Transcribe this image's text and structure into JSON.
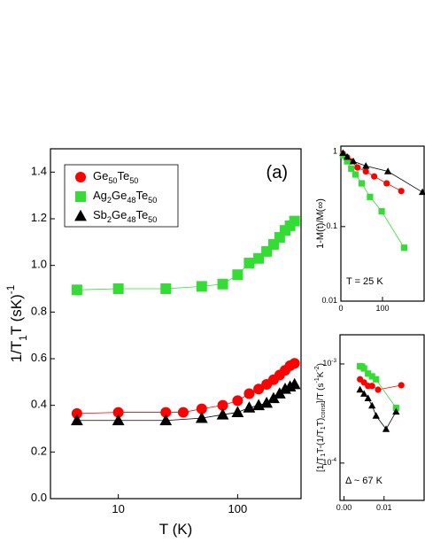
{
  "chart_data": [
    {
      "type": "scatter",
      "panel_label": "(a)",
      "x_label": "T (K)",
      "y_label": "1/T1T (sK)-1",
      "xscale": "log",
      "xlim": [
        2.7,
        340
      ],
      "xticks": [
        10,
        100
      ],
      "ylim": [
        0,
        1.5
      ],
      "yticks": [
        {
          "value": 0,
          "label": "0.0"
        },
        0.2,
        0.4,
        0.6,
        0.8,
        {
          "value": 1,
          "label": "1.0"
        },
        1.2,
        1.4
      ],
      "legend": "upper-left",
      "series": [
        {
          "name": "Ge50Te50",
          "color": "#ff0000",
          "marker": "circle",
          "x": [
            4.5,
            10,
            25,
            35,
            50,
            75,
            100,
            125,
            150,
            175,
            200,
            225,
            250,
            275,
            300
          ],
          "values": [
            0.365,
            0.37,
            0.37,
            0.37,
            0.385,
            0.4,
            0.42,
            0.45,
            0.47,
            0.49,
            0.51,
            0.53,
            0.55,
            0.57,
            0.58
          ]
        },
        {
          "name": "Ag2Ge48Te50",
          "color": "#33dd33",
          "marker": "square",
          "x": [
            4.5,
            10,
            25,
            50,
            75,
            100,
            125,
            150,
            175,
            200,
            225,
            250,
            275,
            300
          ],
          "values": [
            0.895,
            0.9,
            0.9,
            0.91,
            0.92,
            0.96,
            1.01,
            1.03,
            1.06,
            1.09,
            1.12,
            1.15,
            1.17,
            1.19
          ]
        },
        {
          "name": "Sb2Ge48Te50",
          "color": "#000000",
          "marker": "triangle",
          "x": [
            4.5,
            10,
            25,
            50,
            75,
            100,
            125,
            150,
            175,
            200,
            225,
            250,
            275,
            300
          ],
          "values": [
            0.335,
            0.335,
            0.335,
            0.345,
            0.36,
            0.37,
            0.39,
            0.4,
            0.41,
            0.43,
            0.45,
            0.47,
            0.48,
            0.49
          ]
        }
      ]
    },
    {
      "type": "scatter",
      "y_label": "1-M(t)/M(∞)",
      "annotation": "T = 25 K",
      "xlim": [
        0,
        200
      ],
      "xticks": [
        0,
        100
      ],
      "yscale": "log",
      "ylim": [
        0.01,
        1.2
      ],
      "yticks": [
        0.01,
        0.1,
        1
      ],
      "series": [
        {
          "color": "#ff0000",
          "marker": "circle",
          "x": [
            5,
            15,
            25,
            40,
            60,
            80,
            110,
            145
          ],
          "values": [
            0.95,
            0.85,
            0.75,
            0.62,
            0.55,
            0.47,
            0.38,
            0.3
          ]
        },
        {
          "color": "#33dd33",
          "marker": "square",
          "x": [
            5,
            15,
            25,
            35,
            50,
            70,
            98,
            152
          ],
          "values": [
            0.9,
            0.75,
            0.6,
            0.5,
            0.38,
            0.25,
            0.16,
            0.052
          ]
        },
        {
          "color": "#000000",
          "marker": "triangle",
          "x": [
            5,
            15,
            30,
            60,
            113,
            196
          ],
          "values": [
            0.97,
            0.86,
            0.75,
            0.65,
            0.55,
            0.29
          ]
        }
      ]
    },
    {
      "type": "scatter",
      "y_label": "[1/T1T-(1/T1T)const]/T  (s-1K-2)",
      "annotation": "Δ ~ 67 K",
      "xlim": [
        -0.001,
        0.02
      ],
      "xticks": [
        {
          "value": 0,
          "label": "0.00"
        },
        {
          "value": 0.01,
          "label": "0.01"
        }
      ],
      "yscale": "log",
      "ylim": [
        4.2e-05,
        0.00197
      ],
      "yticks": [
        {
          "value": 0.0001,
          "label": "10-4"
        },
        {
          "value": 0.001,
          "label": "10-3"
        }
      ],
      "series": [
        {
          "color": "#ff0000",
          "marker": "circle",
          "x": [
            0.004,
            0.005,
            0.006,
            0.007,
            0.0085,
            0.0143
          ],
          "values": [
            0.0007,
            0.00065,
            0.0006,
            0.0006,
            0.00055,
            0.00061
          ]
        },
        {
          "color": "#33dd33",
          "marker": "square",
          "x": [
            0.004,
            0.0045,
            0.005,
            0.006,
            0.007,
            0.008,
            0.013
          ],
          "values": [
            0.00095,
            0.00094,
            0.0009,
            0.0008,
            0.00075,
            0.0007,
            0.00036
          ]
        },
        {
          "color": "#000000",
          "marker": "triangle",
          "x": [
            0.004,
            0.005,
            0.006,
            0.007,
            0.008,
            0.0105,
            0.013
          ],
          "values": [
            0.00055,
            0.0005,
            0.00045,
            0.00038,
            0.0003,
            0.00022,
            0.00033
          ]
        }
      ]
    }
  ]
}
